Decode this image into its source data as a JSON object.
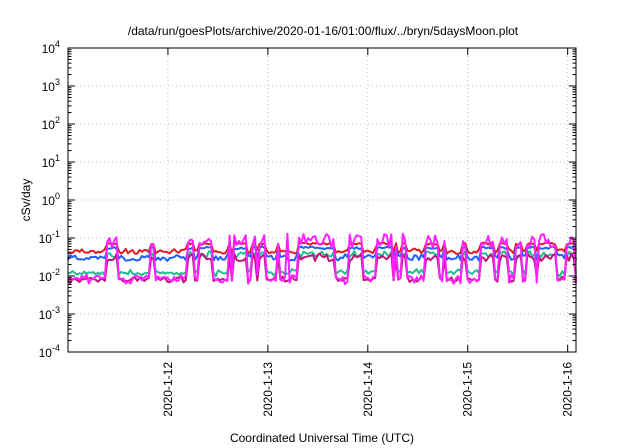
{
  "chart_data": {
    "type": "line",
    "title": "/data/run/goesPlots/archive/2020-01-16/01:00/flux/../bryn/5daysMoon.plot",
    "xlabel": "Coordinated Universal Time (UTC)",
    "ylabel": "cSv/day",
    "x_range": [
      "2020-01-11T00:00",
      "2020-01-16T02:00"
    ],
    "x_ticks": [
      "2020-1-12",
      "2020-1-13",
      "2020-1-14",
      "2020-1-15",
      "2020-1-16"
    ],
    "y_scale": "log",
    "ylim": [
      0.0001,
      10000
    ],
    "y_ticks": [
      {
        "base": "10",
        "exp": "-4"
      },
      {
        "base": "10",
        "exp": "-3"
      },
      {
        "base": "10",
        "exp": "-2"
      },
      {
        "base": "10",
        "exp": "-1"
      },
      {
        "base": "10",
        "exp": "0"
      },
      {
        "base": "10",
        "exp": "1"
      },
      {
        "base": "10",
        "exp": "2"
      },
      {
        "base": "10",
        "exp": "3"
      },
      {
        "base": "10",
        "exp": "4"
      }
    ],
    "grid": true,
    "legend": false,
    "series": [
      {
        "color": "#e41a1c",
        "low": 0.035,
        "high": 0.075,
        "baseline": 0.05
      },
      {
        "color": "#1f5fff",
        "low": 0.022,
        "high": 0.06,
        "baseline": 0.035
      },
      {
        "color": "#1fbf8f",
        "low": 0.009,
        "high": 0.045,
        "baseline": 0.013
      },
      {
        "color": "#c0147a",
        "low": 0.006,
        "high": 0.04,
        "baseline": 0.008
      },
      {
        "color": "#ff22ff",
        "low": 0.0055,
        "high": 0.13,
        "baseline": 0.0075
      }
    ]
  }
}
